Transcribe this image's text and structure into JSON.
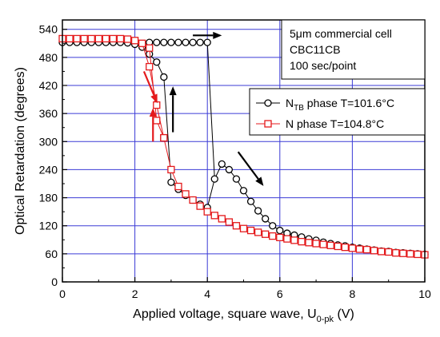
{
  "chart_data": {
    "type": "scatter",
    "xlabel_main": "Applied voltage, square wave, U",
    "xlabel_sub": "0-pk",
    "xlabel_unit": " (V)",
    "ylabel": "Optical Retardation (degrees)",
    "xlim": [
      0,
      10
    ],
    "ylim": [
      0,
      560
    ],
    "xticks": [
      0,
      2,
      4,
      6,
      8,
      10
    ],
    "yticks": [
      0,
      60,
      120,
      180,
      240,
      300,
      360,
      420,
      480,
      540
    ],
    "grid": true,
    "annotation": {
      "lines": [
        "5μm commercial cell",
        "CBC11CB",
        "100 sec/point"
      ]
    },
    "legend_position": "right-middle",
    "series": [
      {
        "name_main": "N",
        "name_sub": "TB",
        "name_rest": " phase T=101.6°C",
        "color": "#000000",
        "marker": "circle",
        "x": [
          0.0,
          0.2,
          0.4,
          0.6,
          0.8,
          1.0,
          1.2,
          1.4,
          1.6,
          1.8,
          2.0,
          2.2,
          2.4,
          2.6,
          2.8,
          3.0,
          3.2,
          3.4,
          3.6,
          3.8,
          4.0,
          4.2,
          4.4,
          4.6,
          4.8,
          5.0,
          5.2,
          5.4,
          5.6,
          5.8,
          6.0,
          6.2,
          6.4,
          6.6,
          6.8,
          7.0,
          7.2,
          7.4,
          7.6,
          7.8,
          8.0,
          8.2,
          8.4,
          8.6,
          8.8,
          9.0,
          9.2,
          9.4,
          9.6,
          9.8,
          10.0,
          2.4,
          2.6,
          2.8,
          3.0,
          3.2,
          3.4,
          3.6,
          3.8,
          4.0
        ],
        "y": [
          512,
          512,
          512,
          512,
          512,
          512,
          512,
          512,
          512,
          511,
          508,
          502,
          487,
          470,
          438,
          213,
          198,
          185,
          175,
          166,
          159,
          220,
          252,
          240,
          220,
          195,
          172,
          152,
          135,
          120,
          110,
          104,
          100,
          96,
          92,
          89,
          85,
          82,
          79,
          77,
          74,
          72,
          70,
          68,
          66,
          65,
          63,
          62,
          61,
          60,
          59,
          512,
          512,
          512,
          512,
          512,
          512,
          512,
          512,
          512
        ]
      },
      {
        "name_main": "N phase T=104.8°C",
        "name_sub": "",
        "name_rest": "",
        "color": "#e41a1c",
        "marker": "square",
        "x": [
          0.0,
          0.2,
          0.4,
          0.6,
          0.8,
          1.0,
          1.2,
          1.4,
          1.6,
          1.8,
          2.0,
          2.2,
          2.4,
          2.6,
          2.8,
          3.0,
          3.2,
          3.4,
          3.6,
          3.8,
          4.0,
          4.2,
          4.4,
          4.6,
          4.8,
          5.0,
          5.2,
          5.4,
          5.6,
          5.8,
          6.0,
          6.2,
          6.4,
          6.6,
          6.8,
          7.0,
          7.2,
          7.4,
          7.6,
          7.8,
          8.0,
          8.2,
          8.4,
          8.6,
          8.8,
          9.0,
          9.2,
          9.4,
          9.6,
          9.8,
          10.0,
          2.4,
          2.6,
          2.8
        ],
        "y": [
          520,
          520,
          520,
          520,
          520,
          520,
          520,
          520,
          520,
          519,
          516,
          510,
          460,
          378,
          308,
          240,
          204,
          188,
          175,
          162,
          150,
          142,
          135,
          128,
          120,
          114,
          110,
          106,
          102,
          98,
          95,
          92,
          89,
          86,
          84,
          82,
          80,
          78,
          76,
          74,
          72,
          70,
          69,
          67,
          65,
          64,
          62,
          61,
          60,
          59,
          58,
          500,
          345,
          308
        ]
      }
    ],
    "arrows": [
      {
        "color": "#000000",
        "from": [
          3.6,
          527
        ],
        "to": [
          4.4,
          527
        ]
      },
      {
        "color": "#000000",
        "from": [
          3.05,
          320
        ],
        "to": [
          3.05,
          418
        ]
      },
      {
        "color": "#000000",
        "from": [
          4.85,
          278
        ],
        "to": [
          5.55,
          205
        ]
      },
      {
        "color": "#e41a1c",
        "from": [
          2.25,
          450
        ],
        "to": [
          2.62,
          382
        ]
      },
      {
        "color": "#e41a1c",
        "from": [
          2.5,
          300
        ],
        "to": [
          2.5,
          372
        ]
      }
    ]
  }
}
